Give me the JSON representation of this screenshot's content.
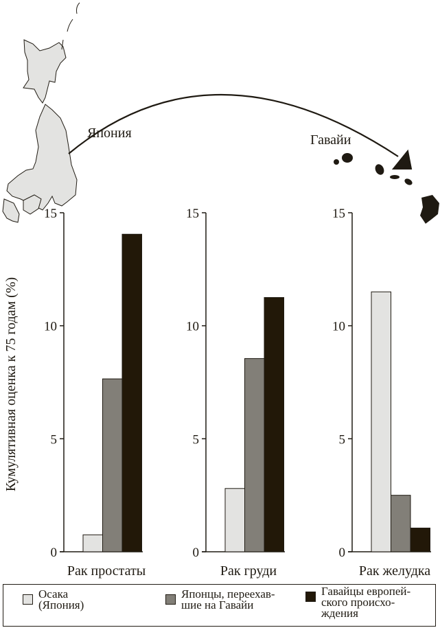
{
  "map": {
    "origin_label": "Япония",
    "destination_label": "Гавайи",
    "land_color": "#e3e3e1",
    "hawaii_color": "#1f1a12"
  },
  "chart_data": [
    {
      "type": "bar",
      "xlabel": "Рак простаты",
      "ylabel": "Кумулятивная оценка к 75 годам (%)",
      "ylim": [
        0,
        15
      ],
      "yticks": [
        0,
        5,
        10,
        15
      ],
      "series": [
        {
          "name": "Осака (Япония)",
          "values": [
            0.75
          ]
        },
        {
          "name": "Японцы, переехавшие на Гавайи",
          "values": [
            7.65
          ]
        },
        {
          "name": "Гавайцы европейского происхождения",
          "values": [
            14.05
          ]
        }
      ]
    },
    {
      "type": "bar",
      "xlabel": "Рак груди",
      "ylim": [
        0,
        15
      ],
      "yticks": [
        0,
        5,
        10,
        15
      ],
      "series": [
        {
          "name": "Осака (Япония)",
          "values": [
            2.8
          ]
        },
        {
          "name": "Японцы, переехавшие на Гавайи",
          "values": [
            8.55
          ]
        },
        {
          "name": "Гавайцы европейского происхождения",
          "values": [
            11.25
          ]
        }
      ]
    },
    {
      "type": "bar",
      "xlabel": "Рак желудка",
      "ylim": [
        0,
        15
      ],
      "yticks": [
        0,
        5,
        10,
        15
      ],
      "series": [
        {
          "name": "Осака (Япония)",
          "values": [
            11.5
          ]
        },
        {
          "name": "Японцы, переехавшие на Гавайи",
          "values": [
            2.5
          ]
        },
        {
          "name": "Гавайцы европейского происхождения",
          "values": [
            1.05
          ]
        }
      ]
    }
  ],
  "legend": {
    "placement": "bottom",
    "items": [
      {
        "label": "Осака\n(Япония)",
        "color": "#e3e3e1"
      },
      {
        "label": "Японцы, переехав-\nшие на Гавайи",
        "color": "#827f78"
      },
      {
        "label": "Гавайцы европей-\nского происхо-\nждения",
        "color": "#221808"
      }
    ]
  }
}
